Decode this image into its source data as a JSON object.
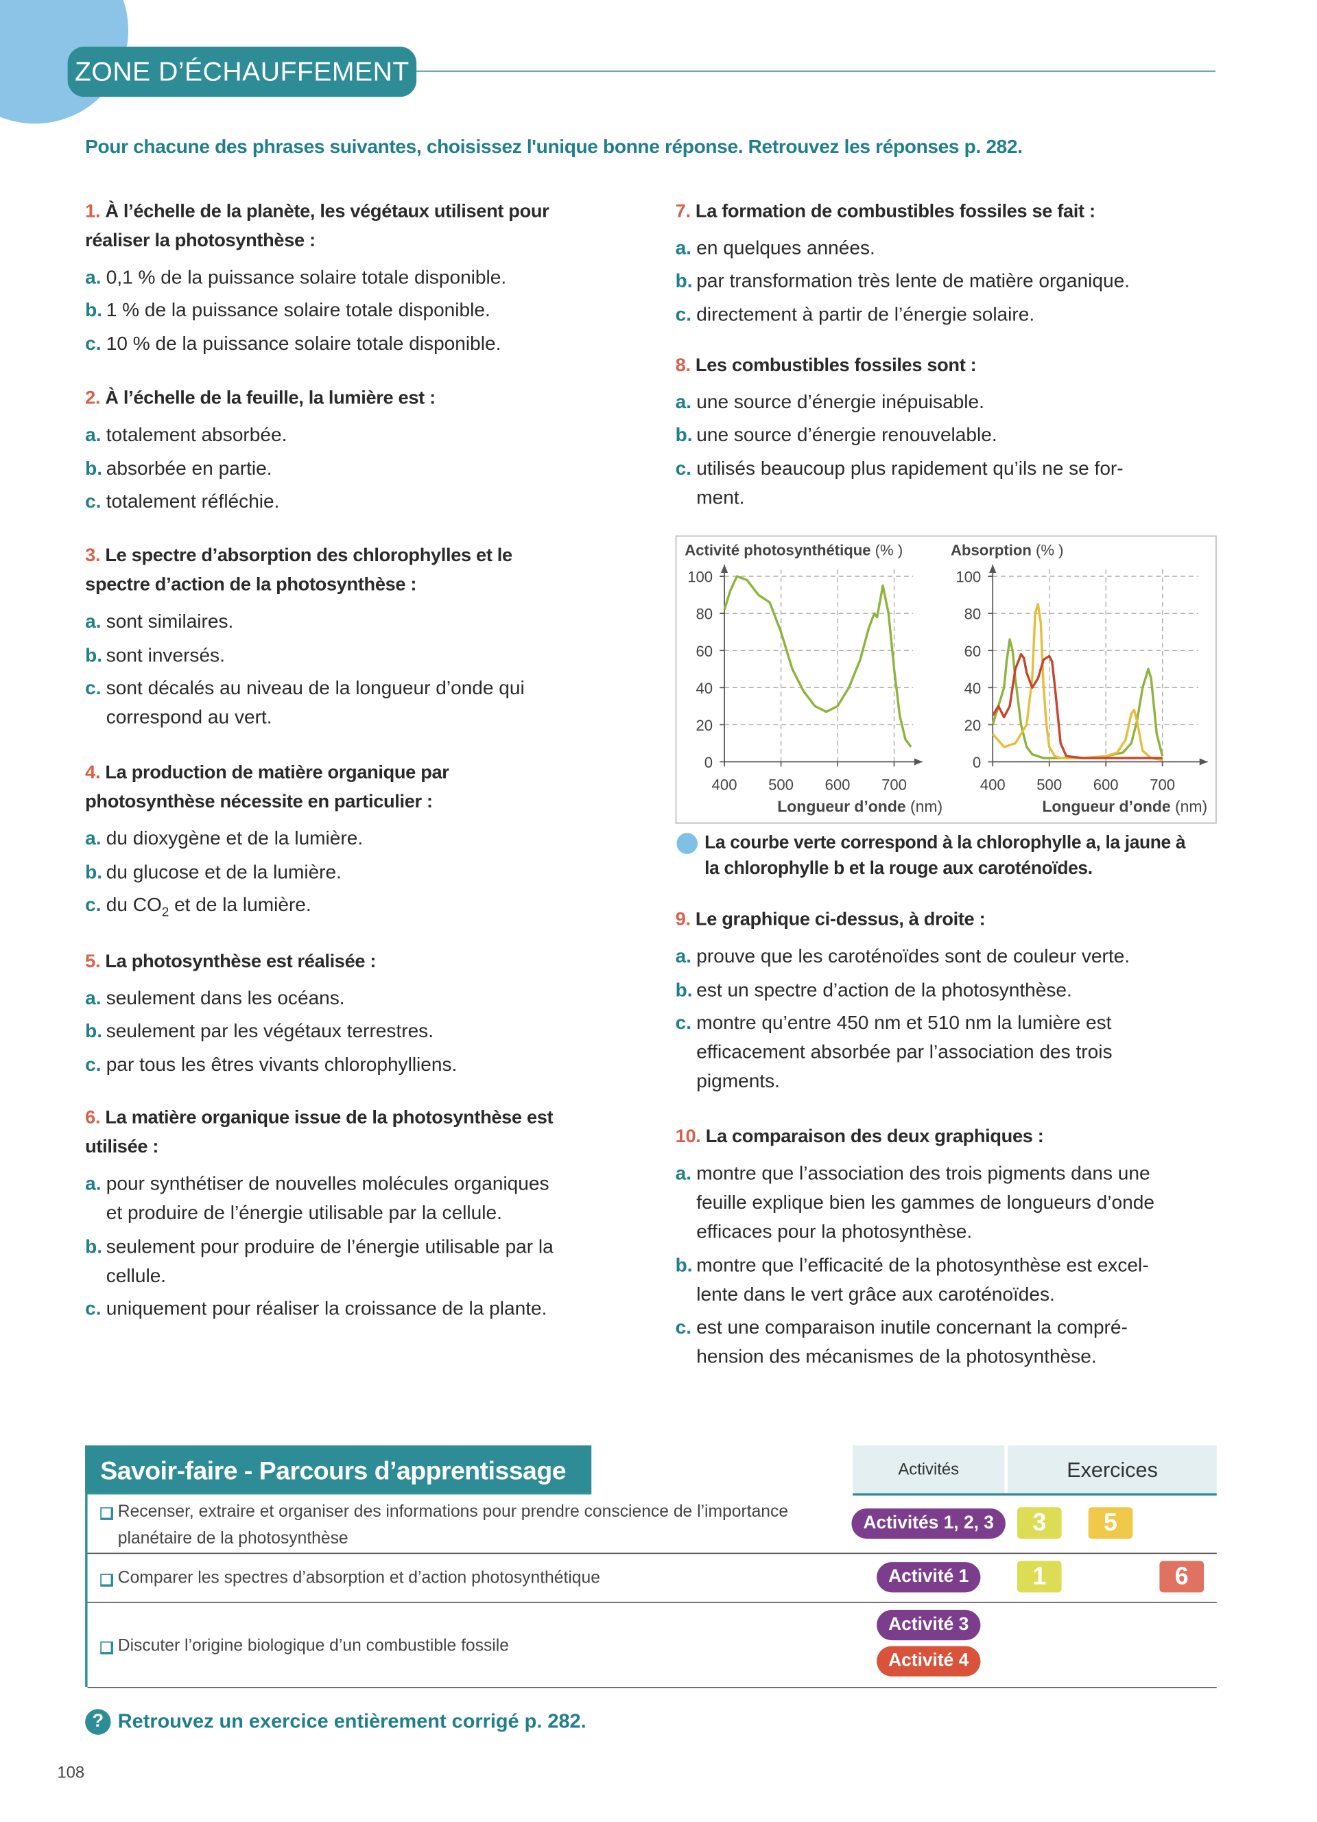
{
  "header": {
    "title": "ZONE D’ÉCHAUFFEMENT",
    "instruction": "Pour chacune des phrases suivantes, choisissez l'unique bonne réponse. Retrouvez les réponses p. 282."
  },
  "questions": [
    {
      "number": "1.",
      "title": "À l’échelle de la planète, les végétaux utilisent pour\nréaliser la photosynthèse :",
      "options": [
        {
          "letter": "a.",
          "text": "0,1 % de la puissance solaire totale disponible."
        },
        {
          "letter": "b.",
          "text": "1 % de la puissance solaire totale disponible."
        },
        {
          "letter": "c.",
          "text": "10 % de la puissance solaire totale disponible."
        }
      ]
    },
    {
      "number": "2.",
      "title": "À l’échelle de la feuille, la lumière est :",
      "options": [
        {
          "letter": "a.",
          "text": "totalement absorbée."
        },
        {
          "letter": "b.",
          "text": "absorbée en partie."
        },
        {
          "letter": "c.",
          "text": "totalement réfléchie."
        }
      ]
    },
    {
      "number": "3.",
      "title": "Le spectre d’absorption des chlorophylles et le\nspectre d’action de la photosynthèse :",
      "options": [
        {
          "letter": "a.",
          "text": "sont similaires."
        },
        {
          "letter": "b.",
          "text": "sont inversés."
        },
        {
          "letter": "c.",
          "text": "sont décalés au niveau de la longueur d’onde qui\ncorrespond au vert."
        }
      ]
    },
    {
      "number": "4.",
      "title": "La production de matière organique par\nphotosynthèse nécessite en particulier :",
      "options": [
        {
          "letter": "a.",
          "text": "du dioxygène et de la lumière."
        },
        {
          "letter": "b.",
          "text": "du glucose et de la lumière."
        },
        {
          "letter": "c.",
          "text": "du CO",
          "subscript": "2",
          "text_after": " et de la lumière."
        }
      ]
    },
    {
      "number": "5.",
      "title": "La photosynthèse est réalisée :",
      "options": [
        {
          "letter": "a.",
          "text": "seulement dans les océans."
        },
        {
          "letter": "b.",
          "text": "seulement par les végétaux terrestres."
        },
        {
          "letter": "c.",
          "text": "par tous les êtres vivants chlorophylliens."
        }
      ]
    },
    {
      "number": "6.",
      "title": "La matière organique issue de la photosynthèse est\nutilisée :",
      "options": [
        {
          "letter": "a.",
          "text": "pour synthétiser de nouvelles molécules organiques\net produire de l’énergie utilisable par la cellule."
        },
        {
          "letter": "b.",
          "text": "seulement pour produire de l’énergie utilisable par la\ncellule."
        },
        {
          "letter": "c.",
          "text": "uniquement pour réaliser la croissance de la plante."
        }
      ]
    },
    {
      "number": "7.",
      "title": "La formation de combustibles fossiles se fait :",
      "options": [
        {
          "letter": "a.",
          "text": "en quelques années."
        },
        {
          "letter": "b.",
          "text": "par transformation très lente de matière organique."
        },
        {
          "letter": "c.",
          "text": "directement à partir de l’énergie solaire."
        }
      ]
    },
    {
      "number": "8.",
      "title": "Les combustibles fossiles sont :",
      "options": [
        {
          "letter": "a.",
          "text": "une source d’énergie inépuisable."
        },
        {
          "letter": "b.",
          "text": "une source d’énergie renouvelable."
        },
        {
          "letter": "c.",
          "text": "utilisés beaucoup plus rapidement qu’ils ne se for-\nment."
        }
      ]
    },
    {
      "number": "9.",
      "title": "Le graphique ci-dessus, à droite :",
      "options": [
        {
          "letter": "a.",
          "text": "prouve que les caroténoïdes sont de couleur verte."
        },
        {
          "letter": "b.",
          "text": "est un spectre d’action de la photosynthèse."
        },
        {
          "letter": "c.",
          "text": "montre qu’entre 450 nm et 510 nm la lumière est\nefficacement absorbée par l’association des trois\npigments."
        }
      ]
    },
    {
      "number": "10.",
      "title": "La comparaison des deux graphiques :",
      "options": [
        {
          "letter": "a.",
          "text": "montre que l’association des trois pigments dans une\nfeuille explique bien les gammes de longueurs d’onde\nefficaces pour la photosynthèse."
        },
        {
          "letter": "b.",
          "text": "montre que l’efficacité de la photosynthèse est excel-\nlente dans le vert grâce aux caroténoïdes."
        },
        {
          "letter": "c.",
          "text": "est une comparaison inutile concernant la compré-\nhension des mécanismes de la photosynthèse."
        }
      ]
    }
  ],
  "figure": {
    "charts": [
      {
        "type": "line",
        "y_label": "Activité photosynthétique",
        "y_unit": "(% )",
        "x_label": "Longueur d’onde",
        "x_unit": "(nm)",
        "xlim": [
          400,
          750
        ],
        "xticks": [
          400,
          500,
          600,
          700
        ],
        "ylim": [
          0,
          100
        ],
        "yticks": [
          0,
          20,
          40,
          60,
          80,
          100
        ],
        "grid": true,
        "series": [
          {
            "color": "#8fb33c",
            "x": [
              400,
              410,
              422,
              440,
              460,
              480,
              500,
              520,
              540,
              560,
              580,
              600,
              620,
              640,
              655,
              665,
              670,
              680,
              690,
              700,
              710,
              720,
              730
            ],
            "values": [
              82,
              92,
              100,
              98,
              90,
              86,
              70,
              50,
              38,
              30,
              27,
              30,
              40,
              55,
              72,
              80,
              78,
              95,
              80,
              50,
              25,
              12,
              8
            ]
          }
        ]
      },
      {
        "type": "line",
        "y_label": "Absorption",
        "y_unit": "(% )",
        "x_label": "Longueur d’onde",
        "x_unit": "(nm)",
        "xlim": [
          400,
          780
        ],
        "xticks": [
          400,
          500,
          600,
          700
        ],
        "ylim": [
          0,
          100
        ],
        "yticks": [
          0,
          20,
          40,
          60,
          80,
          100
        ],
        "grid": true,
        "series": [
          {
            "color": "#8fb33c",
            "x": [
              400,
              410,
              420,
              425,
              430,
              435,
              440,
              450,
              460,
              470,
              490,
              520,
              560,
              600,
              630,
              645,
              655,
              665,
              675,
              680,
              690,
              700
            ],
            "values": [
              20,
              30,
              40,
              55,
              66,
              60,
              45,
              20,
              8,
              4,
              2,
              2,
              2,
              3,
              5,
              10,
              22,
              40,
              50,
              45,
              15,
              3
            ]
          },
          {
            "color": "#e6be3c",
            "x": [
              400,
              420,
              440,
              460,
              470,
              475,
              480,
              485,
              490,
              495,
              500,
              510,
              520,
              560,
              600,
              620,
              635,
              645,
              650,
              655,
              665,
              680,
              700
            ],
            "values": [
              15,
              8,
              10,
              20,
              45,
              80,
              85,
              75,
              40,
              20,
              8,
              3,
              2,
              2,
              3,
              5,
              12,
              26,
              28,
              22,
              6,
              2,
              1
            ]
          },
          {
            "color": "#c8442c",
            "x": [
              400,
              410,
              420,
              430,
              440,
              450,
              455,
              460,
              470,
              480,
              490,
              500,
              505,
              510,
              520,
              530,
              560,
              600,
              650,
              700
            ],
            "values": [
              25,
              30,
              24,
              30,
              50,
              58,
              56,
              48,
              40,
              45,
              55,
              57,
              54,
              40,
              10,
              3,
              2,
              2,
              2,
              2
            ]
          }
        ]
      }
    ],
    "caption": "La courbe verte correspond à la chlorophylle a, la jaune à\nla chlorophylle b et la rouge aux caroténoïdes."
  },
  "skills": {
    "title": "Savoir-faire - Parcours d’apprentissage",
    "header_activities": "Activités",
    "header_exercises": "Exercices",
    "rows": [
      {
        "text": "Recenser, extraire et organiser des informations pour prendre conscience de l’importance\nplanétaire de la photosynthèse",
        "activities": [
          {
            "label": "Activités 1, 2, 3",
            "color": "#7b3d8c"
          }
        ],
        "exercises": [
          {
            "label": "3",
            "color": "#dcdc55"
          },
          {
            "label": "5",
            "color": "#f0c84a"
          },
          null
        ]
      },
      {
        "text": "Comparer les spectres d’absorption et d’action photosynthétique",
        "activities": [
          {
            "label": "Activité 1",
            "color": "#7b3d8c"
          }
        ],
        "exercises": [
          {
            "label": "1",
            "color": "#dcdc55"
          },
          null,
          {
            "label": "6",
            "color": "#e07262"
          }
        ]
      },
      {
        "text": "Discuter l’origine biologique d’un combustible fossile",
        "activities": [
          {
            "label": "Activité 3",
            "color": "#7b3d8c"
          },
          {
            "label": "Activité 4",
            "color": "#d9533a"
          }
        ],
        "exercises": [
          null,
          null,
          null
        ]
      }
    ]
  },
  "footer": {
    "icon": "?",
    "text": "Retrouvez un exercice entièrement corrigé p. 282."
  },
  "page_number": "108"
}
